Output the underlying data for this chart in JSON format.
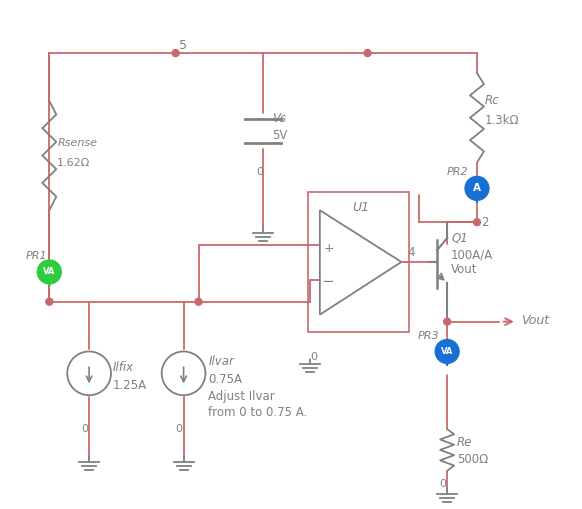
{
  "wire_color": "#C8696B",
  "component_color": "#808080",
  "text_color": "#808080",
  "node_dot_color": "#C8696B",
  "bg_color": "#ffffff",
  "opamp_border_color": "#C8696B",
  "bjt_color": "#808080",
  "probe_green_color": "#2ecc40",
  "probe_blue_color": "#1a6fd4",
  "arrow_color": "#C8696B",
  "label_5": "5",
  "label_2": "2",
  "label_4": "4",
  "label_0": "0",
  "Vs_label": "Vs",
  "Vs_val": "5V",
  "Rc_label": "Rc",
  "Rc_val": "1.3kΩ",
  "Rsense_label": "Rsense",
  "Rsense_val": "1.62Ω",
  "Re_label": "Re",
  "Re_val": "500Ω",
  "Ilfix_label": "Ilfix",
  "Ilfix_val": "1.25A",
  "Ilvar_label": "Ilvar",
  "Ilvar_val": "0.75A",
  "Ilvar_note1": "Adjust Ilvar",
  "Ilvar_note2": "from 0 to 0.75 A.",
  "U1_label": "U1",
  "Q1_label": "Q1",
  "Q1_val": "100A/A",
  "Q1_vout": "Vout",
  "PR1_label": "PR1",
  "PR2_label": "PR2",
  "PR3_label": "PR3",
  "Vout_label": "Vout"
}
